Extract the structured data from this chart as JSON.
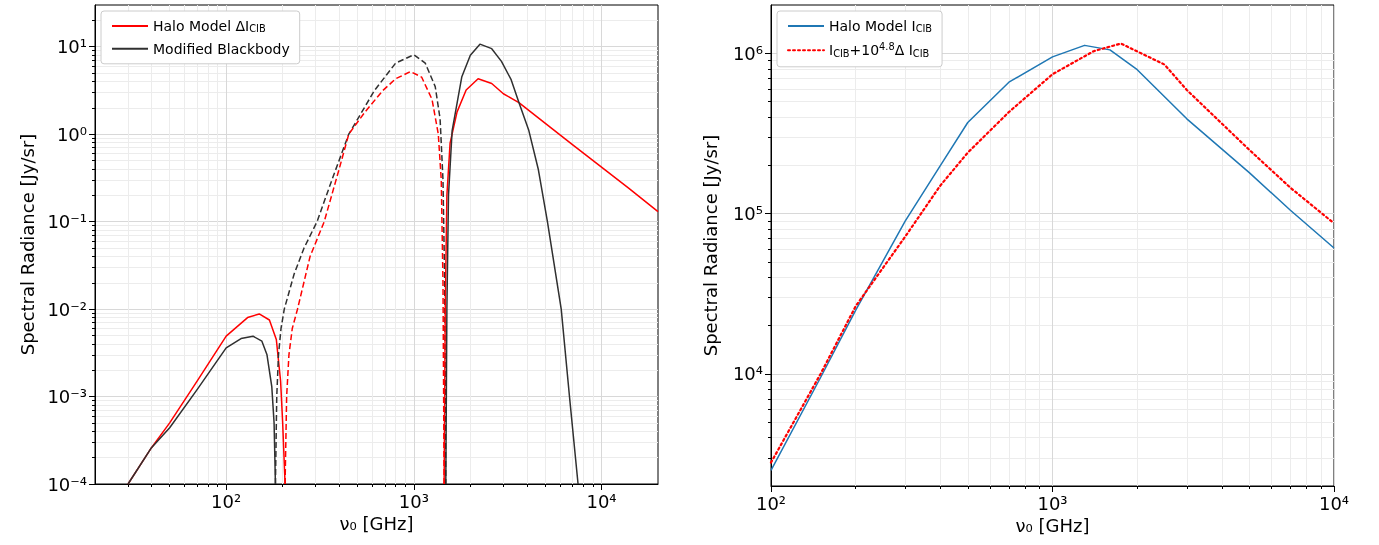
{
  "chart_data": [
    {
      "type": "line",
      "xlabel": "ν₀ [GHz]",
      "ylabel": "Spectral Radiance [Jy/sr]",
      "log": "xy",
      "grid": true,
      "legend": "top left",
      "marker": "none",
      "xlim": [
        20,
        20000
      ],
      "ylim": [
        0.0001,
        30
      ],
      "xticks": [
        {
          "value": 100,
          "label": "10²"
        },
        {
          "value": 1000,
          "label": "10³"
        },
        {
          "value": 10000,
          "label": "10⁴"
        }
      ],
      "yticks": [
        {
          "value": 0.0001,
          "label": "10⁻⁴"
        },
        {
          "value": 0.001,
          "label": "10⁻³"
        },
        {
          "value": 0.01,
          "label": "10⁻²"
        },
        {
          "value": 0.1,
          "label": "10⁻¹"
        },
        {
          "value": 1,
          "label": "10⁰"
        },
        {
          "value": 10,
          "label": "10¹"
        }
      ],
      "series": [
        {
          "name": "Halo Model ΔI$_{CIB}$",
          "color": "#ff0000",
          "line_style": "solid",
          "x": [
            30,
            40,
            50,
            70,
            100,
            130,
            150,
            170,
            185,
            195,
            200,
            206
          ],
          "values": [
            0.0001,
            0.00026,
            0.0005,
            0.0015,
            0.0049,
            0.008,
            0.0088,
            0.0075,
            0.0045,
            0.0015,
            0.0005,
            0.0001
          ]
        },
        {
          "name": "Modified Blackbody",
          "color": "#303030",
          "line_style": "solid",
          "x": [
            30,
            40,
            50,
            70,
            100,
            120,
            139,
            155,
            165,
            175,
            180,
            183
          ],
          "values": [
            0.0001,
            0.00026,
            0.00044,
            0.0012,
            0.0036,
            0.0046,
            0.0049,
            0.0043,
            0.003,
            0.0013,
            0.0005,
            0.0001
          ]
        },
        {
          "color": "#303030",
          "line_style": "dashed",
          "x": [
            183,
            186,
            190,
            196,
            204,
            230,
            260,
            305,
            366,
            450,
            617,
            800,
            1000,
            1150,
            1300,
            1380,
            1430,
            1460,
            1480
          ],
          "values": [
            0.0001,
            0.001,
            0.003,
            0.006,
            0.01,
            0.025,
            0.05,
            0.1,
            0.3,
            1,
            3.16,
            6.5,
            8.1,
            6.5,
            3.5,
            1.5,
            0.3,
            0.02,
            0.0001
          ]
        },
        {
          "color": "#ff0000",
          "line_style": "dashed",
          "x": [
            206,
            210,
            216,
            225,
            240,
            280,
            333,
            400,
            450,
            550,
            684,
            800,
            960,
            1100,
            1250,
            1350,
            1400,
            1430,
            1450
          ],
          "values": [
            0.0001,
            0.001,
            0.003,
            0.006,
            0.01,
            0.04,
            0.1,
            0.4,
            1,
            1.8,
            3.16,
            4.3,
            5.2,
            4.5,
            2.5,
            1,
            0.3,
            0.02,
            0.0001
          ]
        },
        {
          "color": "#ff0000",
          "line_style": "solid",
          "x": [
            1450,
            1470,
            1500,
            1560,
            1700,
            1900,
            2200,
            2600,
            3000,
            3630,
            5000,
            7000,
            10000,
            14000,
            20000
          ],
          "values": [
            0.0001,
            0.01,
            0.2,
            0.79,
            1.8,
            3.2,
            4.3,
            3.8,
            2.9,
            2.3,
            1.34,
            0.76,
            0.42,
            0.24,
            0.13
          ]
        },
        {
          "color": "#303030",
          "line_style": "solid",
          "x": [
            1480,
            1500,
            1530,
            1600,
            1800,
            2000,
            2250,
            2600,
            2930,
            3300,
            3630,
            4100,
            4600,
            5150,
            6100,
            6750,
            7500
          ],
          "values": [
            0.0001,
            0.01,
            0.2,
            1.1,
            4.5,
            8,
            10.7,
            9.5,
            6.8,
            4.2,
            2.3,
            1.1,
            0.4,
            0.1,
            0.01,
            0.001,
            0.0001
          ]
        }
      ]
    },
    {
      "type": "line",
      "xlabel": "ν₀ [GHz]",
      "ylabel": "Spectral Radiance [Jy/sr]",
      "log": "xy",
      "grid": true,
      "legend": "top left",
      "marker": "none",
      "xlim": [
        100,
        10000
      ],
      "ylim": [
        2000,
        2000000
      ],
      "xticks": [
        {
          "value": 100,
          "label": "10²"
        },
        {
          "value": 1000,
          "label": "10³"
        },
        {
          "value": 10000,
          "label": "10⁴"
        }
      ],
      "yticks": [
        {
          "value": 10000,
          "label": "10⁴"
        },
        {
          "value": 100000,
          "label": "10⁵"
        },
        {
          "value": 1000000,
          "label": "10⁶"
        }
      ],
      "series": [
        {
          "name": "Halo Model I$_{CIB}$",
          "color": "#1f77b4",
          "line_style": "solid",
          "x": [
            100,
            150,
            200,
            300,
            400,
            500,
            700,
            1000,
            1300,
            1600,
            2000,
            3000,
            5000,
            7000,
            10000
          ],
          "values": [
            2500,
            9500,
            25000,
            90000,
            200000,
            370000,
            660000,
            950000,
            1120000,
            1050000,
            790000,
            390000,
            180000,
            105000,
            61000
          ]
        },
        {
          "name": "I$_{CIB}$+10$^{4.8}$Δ I$_{CIB}$",
          "color": "#ff0000",
          "line_style": "dotted",
          "x": [
            100,
            150,
            200,
            300,
            400,
            500,
            700,
            1000,
            1400,
            1750,
            2500,
            3000,
            5000,
            7000,
            10000
          ],
          "values": [
            2800,
            10000,
            26500,
            72000,
            150000,
            240000,
            430000,
            740000,
            1030000,
            1150000,
            850000,
            590000,
            250000,
            145000,
            87000
          ]
        }
      ]
    }
  ]
}
